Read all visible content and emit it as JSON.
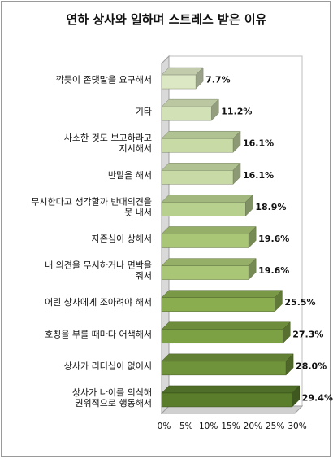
{
  "chart_data": {
    "type": "bar",
    "orientation": "horizontal",
    "style": "3d",
    "title": "연하 상사와 일하며 스트레스 받은 이유",
    "categories": [
      [
        "깍듯이 존댓말을 요구해서"
      ],
      [
        "기타"
      ],
      [
        "사소한 것도 보고하라고",
        "지시해서"
      ],
      [
        "반말을 해서"
      ],
      [
        "무시한다고 생각할까 반대의견을",
        "못 내서"
      ],
      [
        "자존심이 상해서"
      ],
      [
        "내 의견을 무시하거나 면박을",
        "줘서"
      ],
      [
        "어린 상사에게 조아려야 해서"
      ],
      [
        "호칭을 부를 때마다 어색해서"
      ],
      [
        "상사가 리더십이 없어서"
      ],
      [
        "상사가 나이를 의식해",
        "권위적으로 행동해서"
      ]
    ],
    "values": [
      7.7,
      11.2,
      16.1,
      16.1,
      18.9,
      19.6,
      19.6,
      25.5,
      27.3,
      28.0,
      29.4
    ],
    "data_labels": [
      "7.7%",
      "11.2%",
      "16.1%",
      "16.1%",
      "18.9%",
      "19.6%",
      "19.6%",
      "25.5%",
      "27.3%",
      "28.0%",
      "29.4%"
    ],
    "ticks": [
      "0%",
      "5%",
      "10%",
      "15%",
      "20%",
      "25%",
      "30%"
    ],
    "xlim": [
      0,
      30
    ],
    "colors": [
      "#dce8c3",
      "#d3e2b6",
      "#c8dba6",
      "#c8dba6",
      "#b7d08e",
      "#a9c676",
      "#a9c676",
      "#8aae4f",
      "#7ca044",
      "#6f933b",
      "#5a7d2c"
    ],
    "grid": false,
    "legend": "none"
  }
}
